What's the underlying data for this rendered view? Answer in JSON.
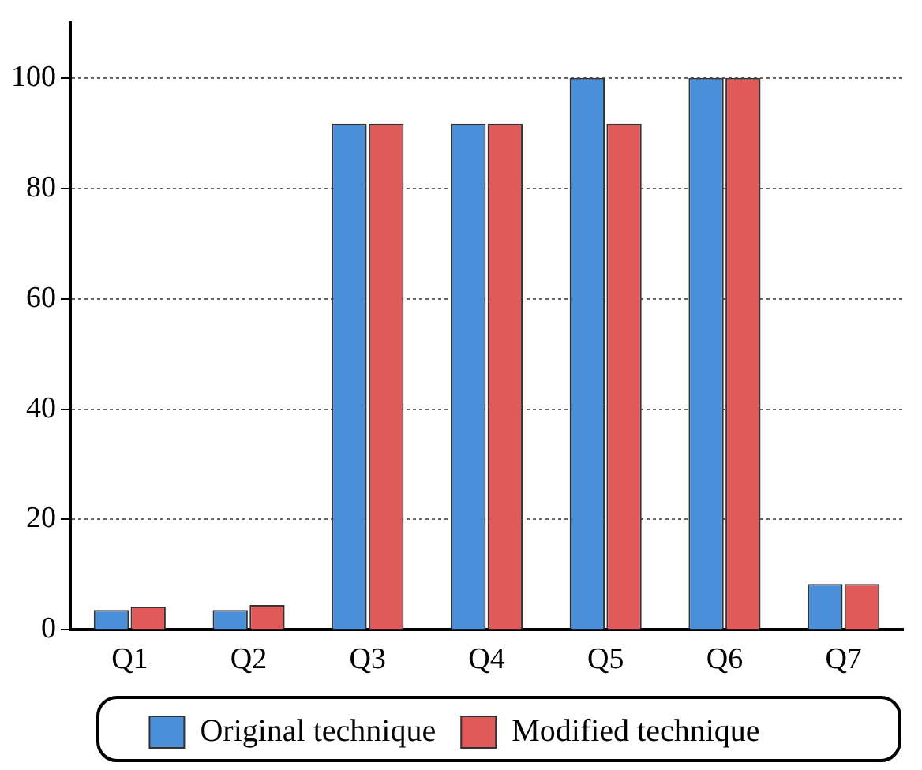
{
  "chart_data": {
    "type": "bar",
    "categories": [
      "Q1",
      "Q2",
      "Q3",
      "Q4",
      "Q5",
      "Q6",
      "Q7"
    ],
    "series": [
      {
        "name": "Original technique",
        "color": "#4a8fd8",
        "values": [
          3.6,
          3.6,
          91.7,
          91.7,
          100,
          100,
          8.3
        ]
      },
      {
        "name": "Modified technique",
        "color": "#e05a5a",
        "values": [
          4.2,
          4.5,
          91.7,
          91.7,
          91.7,
          100,
          8.3
        ]
      }
    ],
    "ylim": [
      0,
      110
    ],
    "yticks": [
      0,
      20,
      40,
      60,
      80,
      100
    ],
    "grid": "y",
    "legend": "bottom"
  }
}
